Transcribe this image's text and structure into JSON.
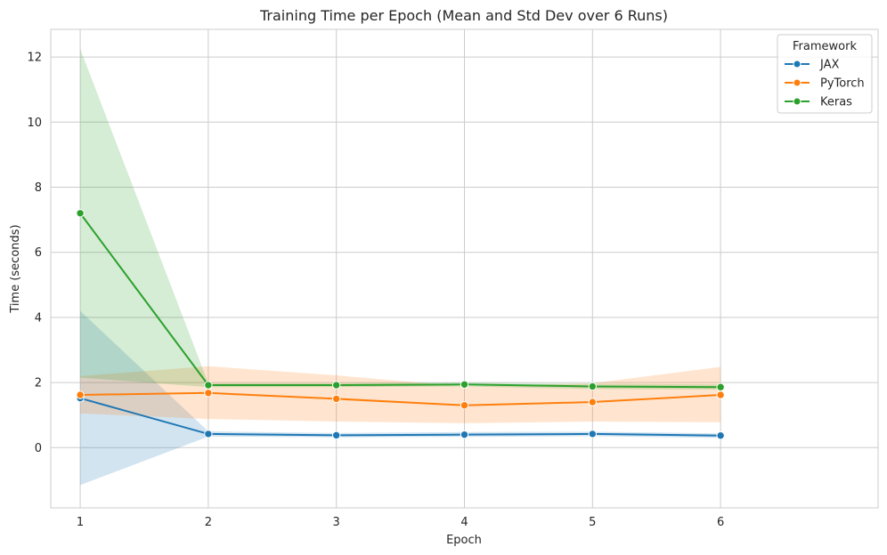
{
  "chart_data": {
    "type": "line",
    "title": "Training Time per Epoch (Mean and Std Dev over 6 Runs)",
    "xlabel": "Epoch",
    "ylabel": "Time (seconds)",
    "x": [
      1,
      2,
      3,
      4,
      5,
      6
    ],
    "x_ticks": [
      "1",
      "2",
      "3",
      "4",
      "5",
      "6"
    ],
    "y_ticks": [
      "0",
      "2",
      "4",
      "6",
      "8",
      "10",
      "12"
    ],
    "xlim": [
      0.77,
      7.23
    ],
    "ylim": [
      -1.85,
      12.85
    ],
    "grid": true,
    "legend": {
      "title": "Framework",
      "placement": "top-right"
    },
    "series": [
      {
        "name": "JAX",
        "color": "#1f77b4",
        "values": [
          1.52,
          0.42,
          0.38,
          0.4,
          0.42,
          0.37
        ],
        "lower": [
          -1.15,
          0.34,
          0.32,
          0.33,
          0.35,
          0.3
        ],
        "upper": [
          4.2,
          0.5,
          0.45,
          0.48,
          0.49,
          0.44
        ]
      },
      {
        "name": "PyTorch",
        "color": "#ff7f0e",
        "values": [
          1.62,
          1.68,
          1.5,
          1.3,
          1.4,
          1.62
        ],
        "lower": [
          1.05,
          0.88,
          0.8,
          0.75,
          0.8,
          0.78
        ],
        "upper": [
          2.2,
          2.5,
          2.22,
          1.88,
          1.98,
          2.48
        ]
      },
      {
        "name": "Keras",
        "color": "#2ca02c",
        "values": [
          7.2,
          1.92,
          1.92,
          1.94,
          1.88,
          1.86
        ],
        "lower": [
          2.15,
          1.86,
          1.86,
          1.88,
          1.8,
          1.78
        ],
        "upper": [
          12.25,
          1.98,
          1.98,
          2.0,
          1.96,
          1.94
        ]
      }
    ]
  }
}
